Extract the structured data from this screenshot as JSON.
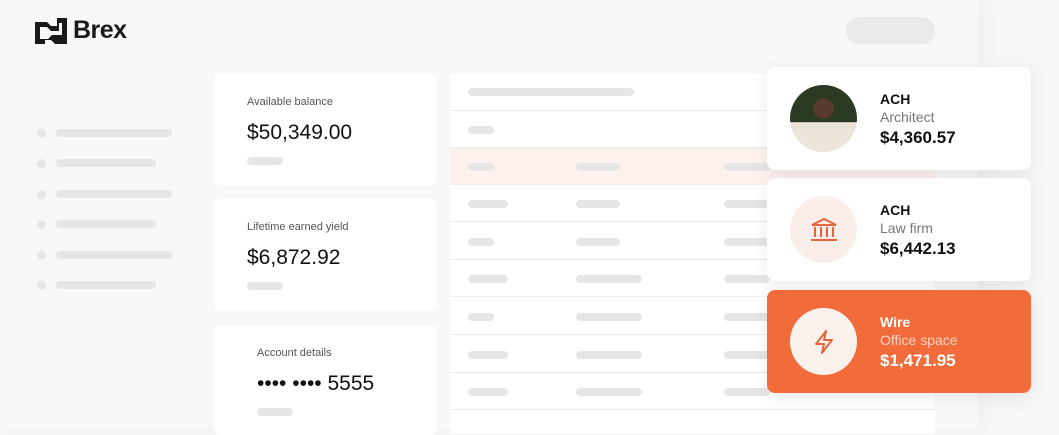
{
  "brand": {
    "name": "Brex"
  },
  "balances": [
    {
      "label": "Available balance",
      "value": "$50,349.00"
    },
    {
      "label": "Lifetime earned yield",
      "value": "$6,872.92"
    },
    {
      "label": "Account details",
      "value": "•••• •••• 5555"
    }
  ],
  "transactions": [
    {
      "type": "ACH",
      "payee": "Architect",
      "amount": "$4,360.57",
      "icon": "avatar-photo"
    },
    {
      "type": "ACH",
      "payee": "Law firm",
      "amount": "$6,442.13",
      "icon": "bank-icon"
    },
    {
      "type": "Wire",
      "payee": "Office space",
      "amount": "$1,471.95",
      "icon": "lightning-icon"
    }
  ],
  "colors": {
    "accent": "#f26b3a",
    "highlight_row": "#fcf1ed",
    "icon_bg": "#f9eee9"
  }
}
